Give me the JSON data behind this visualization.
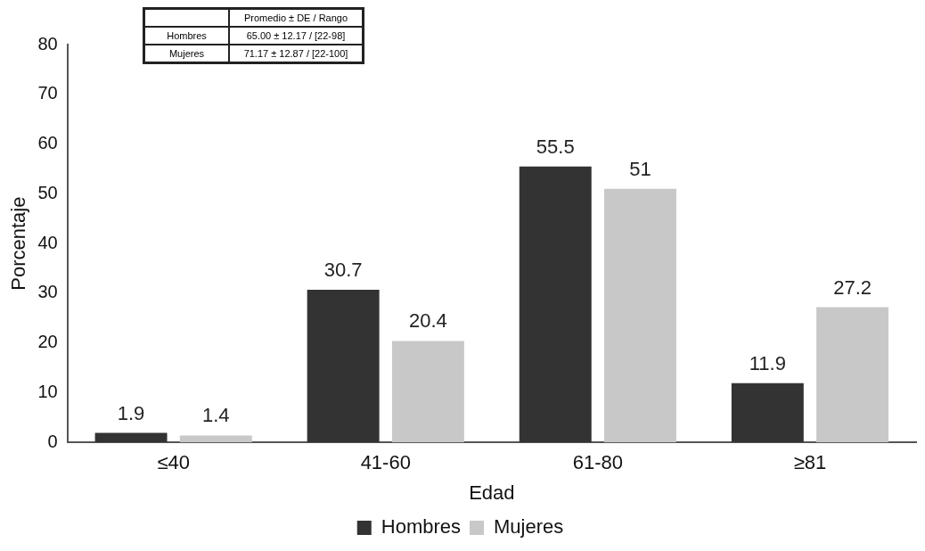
{
  "chart_data": {
    "type": "bar",
    "xlabel": "Edad",
    "ylabel": "Porcentaje",
    "categories": [
      "≤40",
      "41-60",
      "61-80",
      "≥81"
    ],
    "series": [
      {
        "name": "Hombres",
        "color": "#333333",
        "values": [
          1.9,
          30.7,
          55.5,
          11.9
        ]
      },
      {
        "name": "Mujeres",
        "color": "#c8c8c8",
        "values": [
          1.4,
          20.4,
          51,
          27.2
        ]
      }
    ],
    "ylim": [
      0,
      80
    ],
    "yticks": [
      0,
      10,
      20,
      30,
      40,
      50,
      60,
      70,
      80
    ],
    "grid": false,
    "legend": "bottom",
    "data_labels": true,
    "annotations": [
      "Promedio ± DE / Rango",
      "Hombres",
      "65.00 ± 12.17 / [22-98]",
      "Mujeres",
      "71.17 ± 12.87 / [22-100]"
    ]
  }
}
